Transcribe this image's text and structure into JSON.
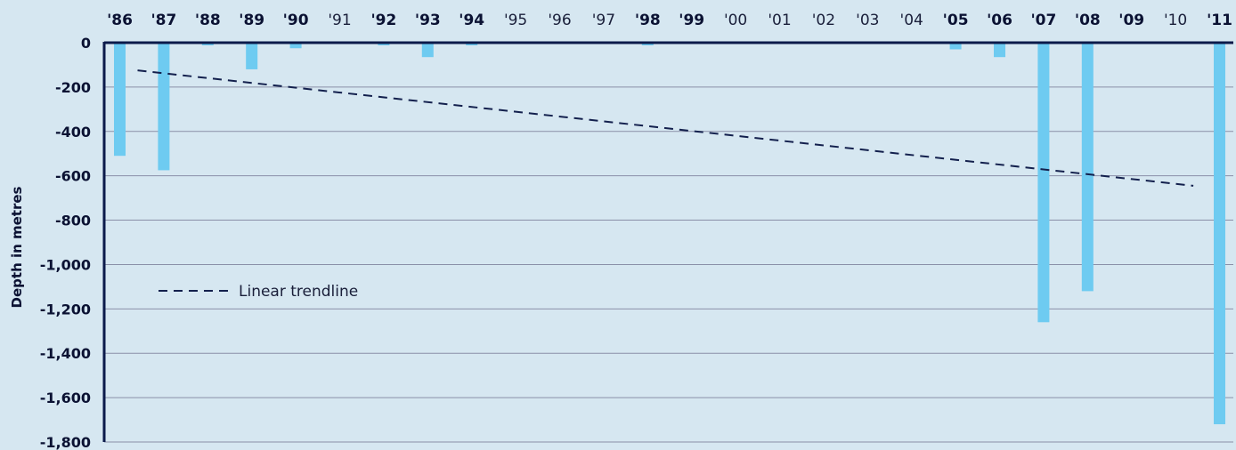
{
  "chart_data": {
    "type": "bar",
    "ylabel": "Depth in metres",
    "ylim": [
      -1800,
      0
    ],
    "yticks": [
      0,
      -200,
      -400,
      -600,
      -800,
      -1000,
      -1200,
      -1400,
      -1600,
      -1800
    ],
    "ytick_labels": [
      "0",
      "-200",
      "-400",
      "-600",
      "-800",
      "-1,000",
      "-1,200",
      "-1,400",
      "-1,600",
      "-1,800"
    ],
    "grid": true,
    "categories": [
      "'86",
      "'87",
      "'88",
      "'89",
      "'90",
      "'91",
      "'92",
      "'93",
      "'94",
      "'95",
      "'96",
      "'97",
      "'98",
      "'99",
      "'00",
      "'01",
      "'02",
      "'03",
      "'04",
      "'05",
      "'06",
      "'07",
      "'08",
      "'09",
      "'10",
      "'11"
    ],
    "bold_categories": [
      "'86",
      "'87",
      "'88",
      "'89",
      "'90",
      "'92",
      "'93",
      "'94",
      "'98",
      "'99",
      "'05",
      "'06",
      "'07",
      "'08",
      "'09",
      "'11"
    ],
    "values": [
      -510,
      -575,
      -12,
      -120,
      -25,
      0,
      -12,
      -65,
      -12,
      0,
      0,
      0,
      -12,
      0,
      0,
      0,
      0,
      0,
      0,
      -30,
      -65,
      -1260,
      -1120,
      0,
      0,
      -1720
    ],
    "trendline": {
      "name": "Linear trendline",
      "start": {
        "x": "'86",
        "y": -125
      },
      "end": {
        "x": "'10",
        "y": -645
      }
    },
    "legend": {
      "placement": "middle-left",
      "label": "Linear trendline"
    },
    "colors": {
      "bar": "#6ecbf1",
      "axis": "#0b1a4a",
      "trend": "#13204d",
      "grid": "#8a8fa8",
      "background": "#d6e7f1"
    }
  }
}
